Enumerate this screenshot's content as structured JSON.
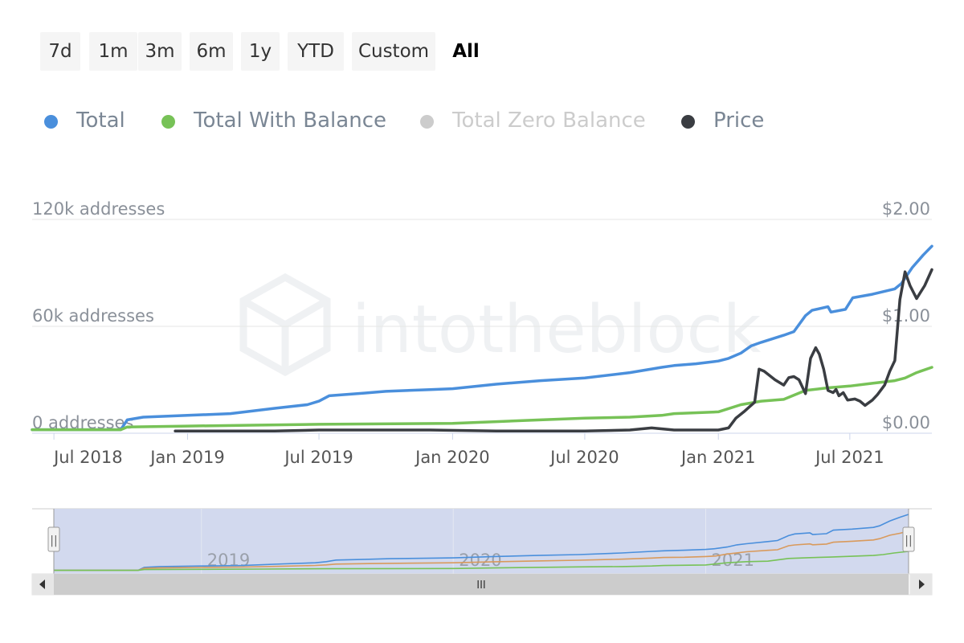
{
  "range_selector": {
    "buttons": [
      "7d",
      "1m",
      "3m",
      "6m",
      "1y",
      "YTD",
      "Custom",
      "All"
    ],
    "selected": "All"
  },
  "legend": [
    {
      "label": "Total",
      "color": "#4a8fdc",
      "state": "visible"
    },
    {
      "label": "Total With Balance",
      "color": "#77c257",
      "state": "visible"
    },
    {
      "label": "Total Zero Balance",
      "color": "#cccccc",
      "state": "hidden"
    },
    {
      "label": "Price",
      "color": "#3a3d42",
      "state": "visible"
    }
  ],
  "watermark": "intotheblock",
  "chart_data": {
    "type": "line",
    "title": "",
    "x_range": [
      "2018-06-01",
      "2021-10-22"
    ],
    "x_ticks": [
      "Jul 2018",
      "Jan 2019",
      "Jul 2019",
      "Jan 2020",
      "Jul 2020",
      "Jan 2021",
      "Jul 2021"
    ],
    "x_tick_dates": [
      "2018-07-01",
      "2019-01-01",
      "2019-07-01",
      "2020-01-01",
      "2020-07-01",
      "2021-01-01",
      "2021-07-01"
    ],
    "y_left": {
      "min": 0,
      "max": 120000,
      "ticks": [
        0,
        60000,
        120000
      ],
      "tick_labels": [
        "0 addresses",
        "60k addresses",
        "120k addresses"
      ]
    },
    "y_right": {
      "min": 0,
      "max": 2,
      "ticks": [
        0,
        1,
        2
      ],
      "tick_labels": [
        "$0.00",
        "$1.00",
        "$2.00"
      ]
    },
    "grid": true,
    "legend_position": "top-left",
    "series": [
      {
        "name": "Total",
        "axis": "left",
        "color": "#4a8fdc",
        "points": [
          [
            "2018-06-01",
            2000
          ],
          [
            "2018-10-01",
            2000
          ],
          [
            "2018-10-10",
            7500
          ],
          [
            "2018-11-01",
            9000
          ],
          [
            "2019-01-01",
            10000
          ],
          [
            "2019-03-01",
            11000
          ],
          [
            "2019-05-01",
            14000
          ],
          [
            "2019-06-15",
            16000
          ],
          [
            "2019-07-01",
            18000
          ],
          [
            "2019-07-15",
            21000
          ],
          [
            "2019-09-01",
            22500
          ],
          [
            "2019-10-01",
            23500
          ],
          [
            "2019-12-01",
            24500
          ],
          [
            "2020-01-01",
            25000
          ],
          [
            "2020-03-01",
            27500
          ],
          [
            "2020-05-01",
            29500
          ],
          [
            "2020-07-01",
            31000
          ],
          [
            "2020-09-01",
            34000
          ],
          [
            "2020-10-15",
            37000
          ],
          [
            "2020-11-01",
            38000
          ],
          [
            "2020-12-01",
            39000
          ],
          [
            "2021-01-01",
            40500
          ],
          [
            "2021-01-15",
            42000
          ],
          [
            "2021-02-01",
            45000
          ],
          [
            "2021-02-15",
            49000
          ],
          [
            "2021-03-01",
            51000
          ],
          [
            "2021-04-01",
            55000
          ],
          [
            "2021-04-15",
            57000
          ],
          [
            "2021-05-01",
            66000
          ],
          [
            "2021-05-10",
            69000
          ],
          [
            "2021-06-01",
            71000
          ],
          [
            "2021-06-05",
            68000
          ],
          [
            "2021-06-25",
            69500
          ],
          [
            "2021-07-05",
            76000
          ],
          [
            "2021-08-01",
            78000
          ],
          [
            "2021-09-01",
            81000
          ],
          [
            "2021-09-10",
            84000
          ],
          [
            "2021-09-25",
            93000
          ],
          [
            "2021-10-10",
            100000
          ],
          [
            "2021-10-22",
            105000
          ]
        ]
      },
      {
        "name": "Total With Balance",
        "axis": "left",
        "color": "#77c257",
        "points": [
          [
            "2018-06-01",
            2000
          ],
          [
            "2018-10-01",
            2000
          ],
          [
            "2018-10-10",
            3500
          ],
          [
            "2019-01-01",
            4000
          ],
          [
            "2019-04-01",
            4500
          ],
          [
            "2019-07-01",
            5000
          ],
          [
            "2020-01-01",
            5500
          ],
          [
            "2020-03-01",
            6500
          ],
          [
            "2020-05-01",
            7500
          ],
          [
            "2020-07-01",
            8500
          ],
          [
            "2020-09-01",
            9000
          ],
          [
            "2020-10-15",
            10000
          ],
          [
            "2020-11-01",
            11000
          ],
          [
            "2021-01-01",
            12000
          ],
          [
            "2021-02-01",
            16000
          ],
          [
            "2021-03-01",
            18000
          ],
          [
            "2021-04-01",
            19000
          ],
          [
            "2021-05-01",
            24000
          ],
          [
            "2021-06-01",
            25500
          ],
          [
            "2021-07-01",
            26500
          ],
          [
            "2021-08-01",
            28000
          ],
          [
            "2021-09-01",
            29500
          ],
          [
            "2021-09-15",
            31000
          ],
          [
            "2021-10-01",
            34000
          ],
          [
            "2021-10-22",
            37000
          ]
        ]
      },
      {
        "name": "Price",
        "axis": "right",
        "color": "#3a3d42",
        "points": [
          [
            "2018-12-15",
            0.02
          ],
          [
            "2019-05-01",
            0.02
          ],
          [
            "2019-07-01",
            0.03
          ],
          [
            "2019-12-01",
            0.03
          ],
          [
            "2020-03-01",
            0.02
          ],
          [
            "2020-07-01",
            0.02
          ],
          [
            "2020-09-01",
            0.03
          ],
          [
            "2020-10-01",
            0.05
          ],
          [
            "2020-11-01",
            0.03
          ],
          [
            "2020-12-01",
            0.03
          ],
          [
            "2021-01-01",
            0.03
          ],
          [
            "2021-01-15",
            0.05
          ],
          [
            "2021-01-25",
            0.14
          ],
          [
            "2021-02-05",
            0.2
          ],
          [
            "2021-02-20",
            0.29
          ],
          [
            "2021-02-26",
            0.6
          ],
          [
            "2021-03-05",
            0.58
          ],
          [
            "2021-03-20",
            0.5
          ],
          [
            "2021-04-01",
            0.45
          ],
          [
            "2021-04-08",
            0.52
          ],
          [
            "2021-04-15",
            0.53
          ],
          [
            "2021-04-22",
            0.5
          ],
          [
            "2021-05-01",
            0.37
          ],
          [
            "2021-05-08",
            0.7
          ],
          [
            "2021-05-15",
            0.8
          ],
          [
            "2021-05-20",
            0.74
          ],
          [
            "2021-05-26",
            0.6
          ],
          [
            "2021-06-01",
            0.4
          ],
          [
            "2021-06-08",
            0.38
          ],
          [
            "2021-06-12",
            0.41
          ],
          [
            "2021-06-16",
            0.35
          ],
          [
            "2021-06-22",
            0.38
          ],
          [
            "2021-06-28",
            0.31
          ],
          [
            "2021-07-08",
            0.32
          ],
          [
            "2021-07-15",
            0.3
          ],
          [
            "2021-07-22",
            0.26
          ],
          [
            "2021-08-01",
            0.31
          ],
          [
            "2021-08-08",
            0.36
          ],
          [
            "2021-08-18",
            0.45
          ],
          [
            "2021-08-25",
            0.58
          ],
          [
            "2021-09-01",
            0.68
          ],
          [
            "2021-09-08",
            1.25
          ],
          [
            "2021-09-15",
            1.51
          ],
          [
            "2021-09-22",
            1.38
          ],
          [
            "2021-10-01",
            1.26
          ],
          [
            "2021-10-12",
            1.38
          ],
          [
            "2021-10-22",
            1.53
          ]
        ]
      }
    ]
  },
  "navigator": {
    "year_labels": [
      "2019",
      "2020",
      "2021"
    ],
    "year_dates": [
      "2019-01-01",
      "2020-01-01",
      "2021-01-01"
    ],
    "series_colors": [
      "#4a8fdc",
      "#d99a5c",
      "#77c257"
    ],
    "thumb_label": "III",
    "handle_label": "||"
  }
}
